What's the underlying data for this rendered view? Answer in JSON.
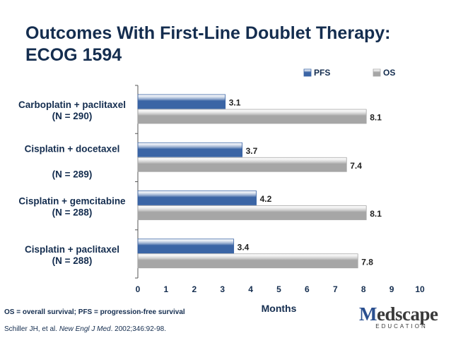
{
  "title_lines": [
    "Outcomes With First-Line Doublet Therapy:",
    "ECOG 1594"
  ],
  "footnote": "OS = overall survival; PFS = progression-free survival",
  "citation": {
    "authors": "Schiller JH, et al.",
    "journal": "New Engl J Med",
    "details": ". 2002;346:92-98."
  },
  "logo": {
    "main_prefix": "M",
    "main_rest": "edscape",
    "sub": "EDUCATION"
  },
  "colors": {
    "pfs": "#3b65a5",
    "os": "#a6a6a6",
    "title": "#142d4f"
  },
  "chart_data": {
    "type": "bar",
    "orientation": "horizontal",
    "categories": [
      [
        "Carboplatin + paclitaxel",
        "(N = 290)"
      ],
      [
        "Cisplatin + docetaxel",
        "(N = 289)"
      ],
      [
        "Cisplatin + gemcitabine",
        "(N = 288)"
      ],
      [
        "Cisplatin + paclitaxel",
        "(N = 288)"
      ]
    ],
    "series": [
      {
        "name": "PFS",
        "values": [
          3.1,
          3.7,
          4.2,
          3.4
        ]
      },
      {
        "name": "OS",
        "values": [
          8.1,
          7.4,
          8.1,
          7.8
        ]
      }
    ],
    "xlabel": "Months",
    "xlim": [
      0,
      10
    ],
    "xticks": [
      "0",
      "1",
      "2",
      "3",
      "4",
      "5",
      "6",
      "7",
      "8",
      "9",
      "10"
    ],
    "legend_position": "top-right",
    "grid": false
  }
}
